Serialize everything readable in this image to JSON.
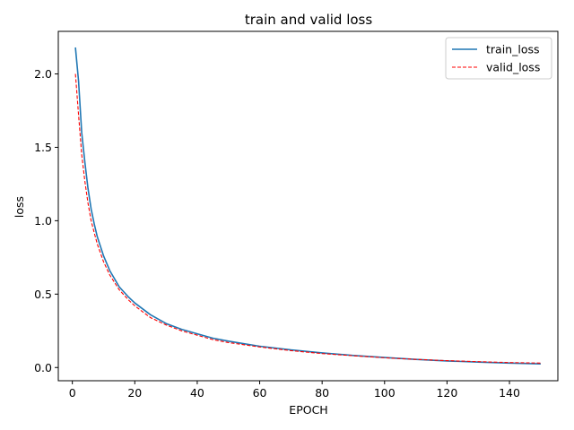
{
  "chart_data": {
    "type": "line",
    "title": "train and valid loss",
    "xlabel": "EPOCH",
    "ylabel": "loss",
    "xlim": [
      -4.5,
      155.5
    ],
    "ylim": [
      -0.09,
      2.29
    ],
    "xticks": [
      0,
      20,
      40,
      60,
      80,
      100,
      120,
      140
    ],
    "yticks": [
      0.0,
      0.5,
      1.0,
      1.5,
      2.0
    ],
    "xtick_labels": [
      "0",
      "20",
      "40",
      "60",
      "80",
      "100",
      "120",
      "140"
    ],
    "ytick_labels": [
      "0.0",
      "0.5",
      "1.0",
      "1.5",
      "2.0"
    ],
    "grid": false,
    "legend_position": "top-right",
    "series": [
      {
        "name": "train_loss",
        "color": "#1f77b4",
        "style": "solid",
        "x": [
          1,
          2,
          3,
          4,
          5,
          6,
          7,
          8,
          10,
          12,
          15,
          18,
          20,
          25,
          30,
          35,
          40,
          45,
          50,
          60,
          70,
          80,
          90,
          100,
          110,
          120,
          130,
          140,
          150
        ],
        "y": [
          2.18,
          1.95,
          1.6,
          1.4,
          1.22,
          1.08,
          0.98,
          0.89,
          0.76,
          0.66,
          0.55,
          0.48,
          0.44,
          0.36,
          0.3,
          0.26,
          0.23,
          0.2,
          0.18,
          0.145,
          0.12,
          0.1,
          0.082,
          0.068,
          0.055,
          0.045,
          0.037,
          0.03,
          0.025
        ]
      },
      {
        "name": "valid_loss",
        "color": "#ff0000",
        "style": "dashed",
        "x": [
          1,
          2,
          3,
          4,
          5,
          6,
          7,
          8,
          10,
          12,
          15,
          18,
          20,
          25,
          30,
          35,
          40,
          45,
          50,
          60,
          70,
          80,
          90,
          100,
          110,
          120,
          130,
          140,
          150
        ],
        "y": [
          2.0,
          1.72,
          1.45,
          1.27,
          1.12,
          1.0,
          0.92,
          0.84,
          0.72,
          0.63,
          0.53,
          0.46,
          0.42,
          0.34,
          0.29,
          0.25,
          0.22,
          0.19,
          0.17,
          0.14,
          0.115,
          0.095,
          0.08,
          0.066,
          0.055,
          0.047,
          0.04,
          0.034,
          0.03
        ]
      }
    ]
  }
}
